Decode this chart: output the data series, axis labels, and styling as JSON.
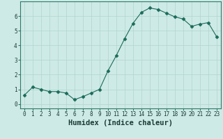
{
  "x": [
    0,
    1,
    2,
    3,
    4,
    5,
    6,
    7,
    8,
    9,
    10,
    11,
    12,
    13,
    14,
    15,
    16,
    17,
    18,
    19,
    20,
    21,
    22,
    23
  ],
  "y": [
    0.6,
    1.15,
    1.0,
    0.85,
    0.85,
    0.75,
    0.3,
    0.5,
    0.75,
    1.0,
    2.25,
    3.3,
    4.45,
    5.5,
    6.25,
    6.55,
    6.45,
    6.2,
    5.95,
    5.8,
    5.3,
    5.45,
    5.55,
    4.6
  ],
  "line_color": "#1a6b5a",
  "marker": "D",
  "marker_size": 2.5,
  "xlabel": "Humidex (Indice chaleur)",
  "xlim": [
    -0.5,
    23.5
  ],
  "ylim": [
    -0.3,
    7.0
  ],
  "yticks": [
    0,
    1,
    2,
    3,
    4,
    5,
    6
  ],
  "xticks": [
    0,
    1,
    2,
    3,
    4,
    5,
    6,
    7,
    8,
    9,
    10,
    11,
    12,
    13,
    14,
    15,
    16,
    17,
    18,
    19,
    20,
    21,
    22,
    23
  ],
  "bg_color": "#ceeae6",
  "grid_color": "#b0d4ce",
  "axis_color": "#2d7a6a",
  "font_color": "#1a3a34",
  "tick_fontsize": 5.5,
  "xlabel_fontsize": 7.5
}
